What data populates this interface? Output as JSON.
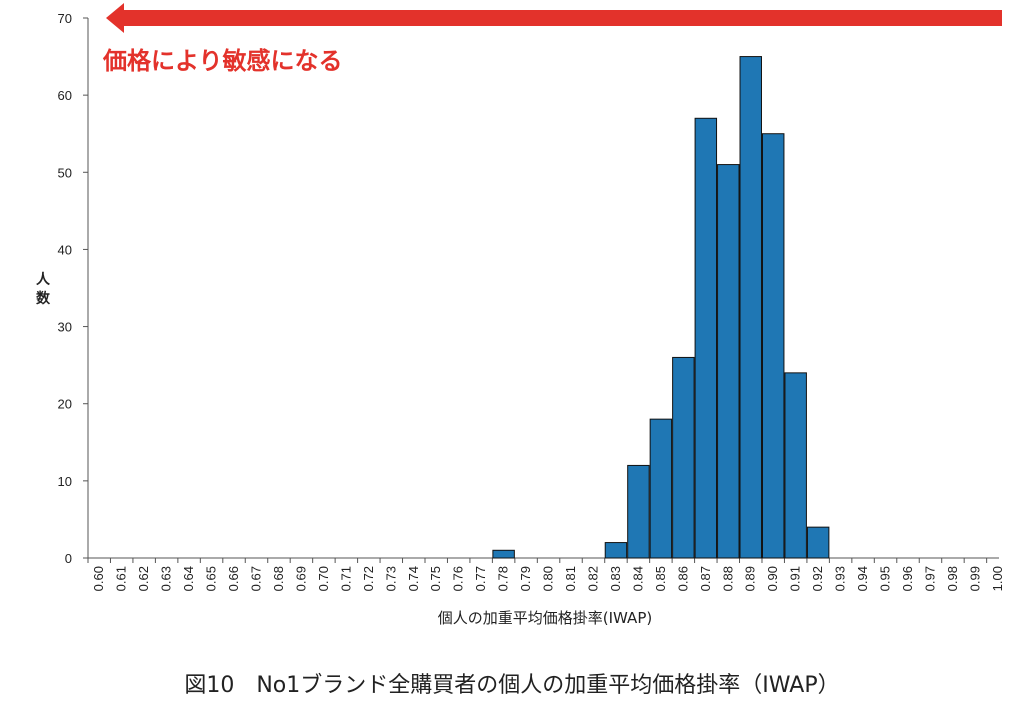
{
  "chart_data": {
    "type": "bar",
    "title": "",
    "xlabel": "個人の加重平均価格掛率(IWAP)",
    "ylabel": "人数",
    "ylim": [
      0,
      70
    ],
    "yticks": [
      0,
      10,
      20,
      30,
      40,
      50,
      60,
      70
    ],
    "grid": false,
    "categories": [
      "0.60",
      "0.61",
      "0.62",
      "0.63",
      "0.64",
      "0.65",
      "0.66",
      "0.67",
      "0.68",
      "0.69",
      "0.70",
      "0.71",
      "0.72",
      "0.73",
      "0.74",
      "0.75",
      "0.76",
      "0.77",
      "0.78",
      "0.79",
      "0.80",
      "0.81",
      "0.82",
      "0.83",
      "0.84",
      "0.85",
      "0.86",
      "0.87",
      "0.88",
      "0.89",
      "0.90",
      "0.91",
      "0.92",
      "0.93",
      "0.94",
      "0.95",
      "0.96",
      "0.97",
      "0.98",
      "0.99",
      "1.00"
    ],
    "values": [
      0,
      0,
      0,
      0,
      0,
      0,
      0,
      0,
      0,
      0,
      0,
      0,
      0,
      0,
      0,
      0,
      0,
      0,
      1,
      0,
      0,
      0,
      0,
      2,
      12,
      18,
      26,
      57,
      51,
      65,
      55,
      24,
      4,
      0,
      0,
      0,
      0,
      0,
      0,
      0,
      0
    ],
    "bar_color": "#1f77b4",
    "arrow_color": "#e3322b",
    "annotation": "価格により敏感になる"
  },
  "caption": "図10　No1ブランド全購買者の個人の加重平均価格掛率（IWAP）"
}
